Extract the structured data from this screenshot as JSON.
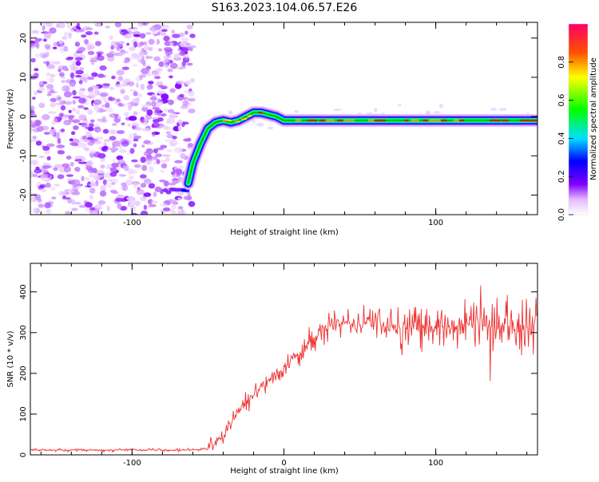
{
  "title": "S163.2023.104.06.57.E26",
  "chart_data": [
    {
      "type": "heatmap",
      "xlabel": "Height of straight line (km)",
      "ylabel": "Frequency (Hz)",
      "xlim": [
        -167,
        167
      ],
      "ylim": [
        -25,
        24
      ],
      "xticks": [
        -100,
        0,
        100
      ],
      "xtick_labels": [
        "-100",
        "",
        "100"
      ],
      "yticks": [
        -20,
        -10,
        0,
        10,
        20
      ],
      "ytick_labels": [
        "-20",
        "-10",
        "0",
        "10",
        "20"
      ],
      "colorbar": {
        "label": "Normalized spectral amplitude",
        "range": [
          0,
          1
        ],
        "ticks": [
          0.0,
          0.2,
          0.4,
          0.6,
          0.8
        ],
        "tick_labels": [
          "0.0",
          "0.2",
          "0.4",
          "0.6",
          "0.8"
        ]
      },
      "noise_region_x": [
        -167,
        -60
      ],
      "ridge": {
        "x": [
          -63,
          -60,
          -55,
          -50,
          -45,
          -40,
          -35,
          -30,
          -25,
          -20,
          -15,
          -10,
          -5,
          0,
          20,
          50,
          80,
          110,
          140,
          167
        ],
        "y": [
          -17,
          -12,
          -7,
          -3,
          -1.5,
          -1,
          -1.5,
          -1,
          0,
          1,
          1,
          0.5,
          0,
          -1,
          -1,
          -1,
          -1,
          -1,
          -1,
          -1
        ]
      },
      "low_patch": {
        "x": [
          -78,
          -63
        ],
        "y": -19
      }
    },
    {
      "type": "line",
      "xlabel": "Height of straight line (km)",
      "ylabel": "SNR (10 * v/v)",
      "xlim": [
        -167,
        167
      ],
      "ylim": [
        0,
        470
      ],
      "xticks": [
        -100,
        0,
        100
      ],
      "xtick_labels": [
        "-100",
        "0",
        "100"
      ],
      "yticks": [
        0,
        100,
        200,
        300,
        400
      ],
      "ytick_labels": [
        "0",
        "100",
        "200",
        "300",
        "400"
      ],
      "color": "#ee3333",
      "profile": {
        "x": [
          -167,
          -60,
          -50,
          -40,
          -30,
          -20,
          -10,
          0,
          10,
          20,
          30,
          50,
          80,
          110,
          140,
          167
        ],
        "y": [
          12,
          12,
          15,
          45,
          110,
          150,
          180,
          215,
          250,
          285,
          320,
          325,
          310,
          320,
          315,
          320
        ]
      }
    }
  ]
}
